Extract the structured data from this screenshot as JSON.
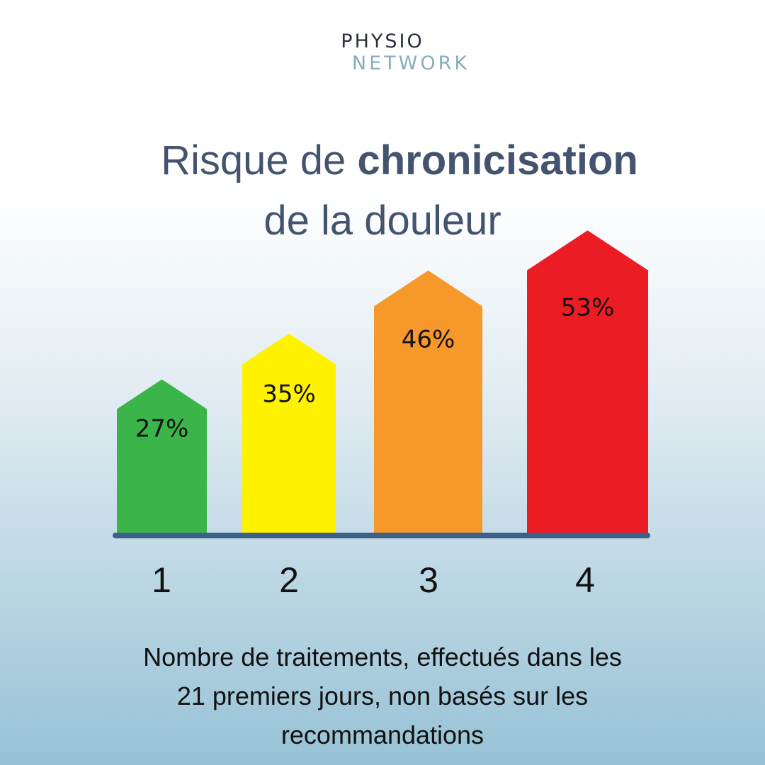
{
  "logo": {
    "line1": "PHYSIO",
    "line2": "NETWORK"
  },
  "title": {
    "line1_regular": "Risque de ",
    "line1_bold": "chronicisation",
    "line2": "de la douleur"
  },
  "chart_data": {
    "type": "bar",
    "categories": [
      "1",
      "2",
      "3",
      "4"
    ],
    "values": [
      27,
      35,
      46,
      53
    ],
    "value_labels": [
      "27%",
      "35%",
      "46%",
      "53%"
    ],
    "colors": [
      "#3bb54a",
      "#fff200",
      "#f7982a",
      "#ec1c24"
    ],
    "axis_color": "#3e5f8a",
    "title": "Risque de chronicisation de la douleur",
    "xlabel_lines": [
      "Nombre de traitements, effectués dans les",
      "21 premiers jours, non basés sur les",
      "recommandations"
    ],
    "ylabel": "",
    "grid": false,
    "legend": "none"
  }
}
